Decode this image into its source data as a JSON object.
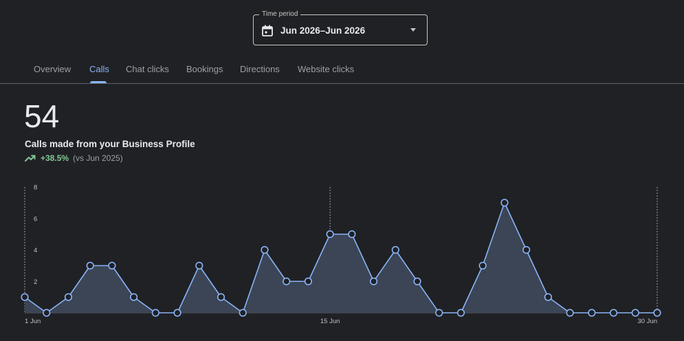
{
  "time_period": {
    "label": "Time period",
    "value": "Jun 2026–Jun 2026",
    "icon": "calendar-icon"
  },
  "tabs": [
    {
      "label": "Overview",
      "active": false
    },
    {
      "label": "Calls",
      "active": true
    },
    {
      "label": "Chat clicks",
      "active": false
    },
    {
      "label": "Bookings",
      "active": false
    },
    {
      "label": "Directions",
      "active": false
    },
    {
      "label": "Website clicks",
      "active": false
    }
  ],
  "metric": {
    "value": "54",
    "label": "Calls made from your Business Profile",
    "change": "+38.5%",
    "comparison": "(vs Jun 2025)",
    "trend_icon": "trending-up-icon"
  },
  "colors": {
    "accent": "#8ab4f8",
    "positive": "#81c995",
    "background": "#202124",
    "area_fill": "#3c4556"
  },
  "chart_data": {
    "type": "area",
    "y_ticks": [
      "8",
      "6",
      "4",
      "2"
    ],
    "x_tick_labels": [
      {
        "day": 1,
        "label": "1 Jun"
      },
      {
        "day": 15,
        "label": "15 Jun"
      },
      {
        "day": 30,
        "label": "30 Jun"
      }
    ],
    "ylim": [
      0,
      8
    ],
    "x": [
      1,
      2,
      3,
      4,
      5,
      6,
      7,
      8,
      9,
      10,
      11,
      12,
      13,
      14,
      15,
      16,
      17,
      18,
      19,
      20,
      21,
      22,
      23,
      24,
      25,
      26,
      27,
      28,
      29,
      30
    ],
    "values": [
      1,
      0,
      1,
      3,
      3,
      1,
      0,
      0,
      3,
      1,
      0,
      4,
      2,
      2,
      5,
      5,
      2,
      4,
      2,
      0,
      0,
      3,
      7,
      4,
      1,
      0,
      0,
      0,
      0,
      0
    ]
  }
}
